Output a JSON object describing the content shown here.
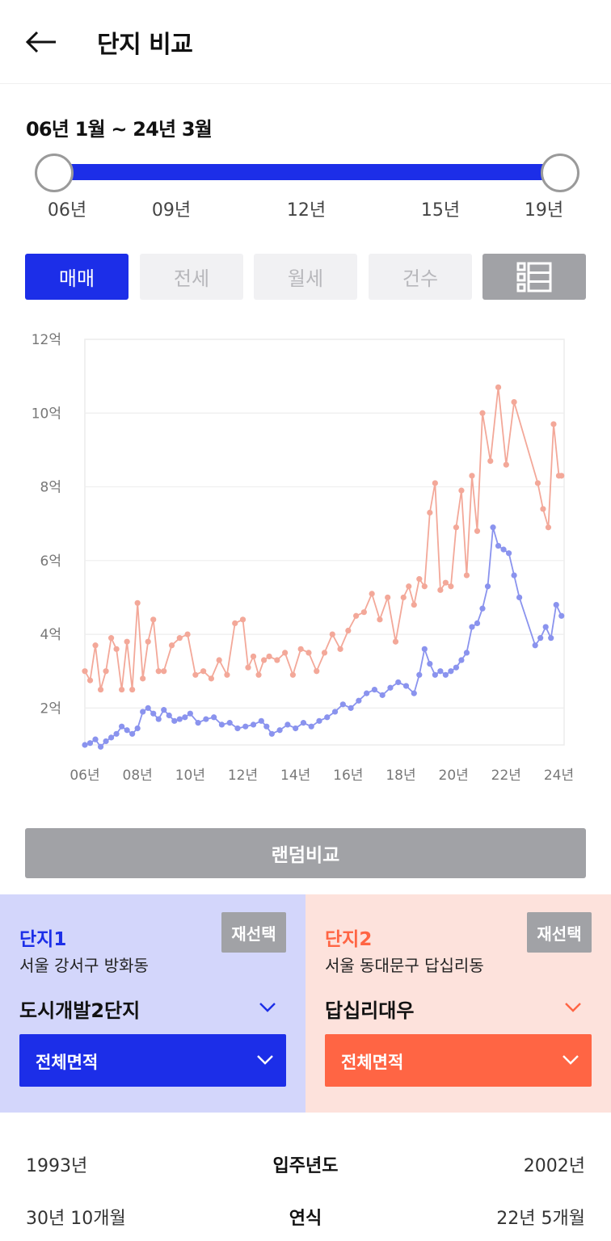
{
  "header": {
    "title": "단지 비교",
    "back_icon": "arrow-left-icon"
  },
  "range": {
    "label": "06년 1월 ~ 24년 3월",
    "ticks": [
      "06년",
      "09년",
      "12년",
      "15년",
      "19년"
    ]
  },
  "tabs": [
    {
      "label": "매매",
      "active": true
    },
    {
      "label": "전세",
      "active": false
    },
    {
      "label": "월세",
      "active": false
    },
    {
      "label": "건수",
      "active": false
    },
    {
      "label": "",
      "icon": "list-icon",
      "active": false
    }
  ],
  "colors": {
    "accent_blue": "#1c2ee8",
    "accent_orange": "#ff6544",
    "series1": "#8a93ee",
    "series2": "#f3a899"
  },
  "chart_data": {
    "type": "line",
    "x_unit": "year",
    "xlim": [
      2006,
      2024.2
    ],
    "ylim": [
      1,
      12
    ],
    "y_ticks": [
      {
        "v": 2,
        "label": "2억"
      },
      {
        "v": 4,
        "label": "4억"
      },
      {
        "v": 6,
        "label": "6억"
      },
      {
        "v": 8,
        "label": "8억"
      },
      {
        "v": 10,
        "label": "10억"
      },
      {
        "v": 12,
        "label": "12억"
      }
    ],
    "x_ticks": [
      {
        "v": 2006,
        "label": "06년"
      },
      {
        "v": 2008,
        "label": "08년"
      },
      {
        "v": 2010,
        "label": "10년"
      },
      {
        "v": 2012,
        "label": "12년"
      },
      {
        "v": 2014,
        "label": "14년"
      },
      {
        "v": 2016,
        "label": "16년"
      },
      {
        "v": 2018,
        "label": "18년"
      },
      {
        "v": 2020,
        "label": "20년"
      },
      {
        "v": 2022,
        "label": "22년"
      },
      {
        "v": 2024,
        "label": "24년"
      }
    ],
    "series": [
      {
        "color": "#8a93ee",
        "x": [
          2006.0,
          2006.2,
          2006.4,
          2006.6,
          2006.8,
          2007.0,
          2007.2,
          2007.4,
          2007.6,
          2007.8,
          2008.0,
          2008.2,
          2008.4,
          2008.6,
          2008.8,
          2009.0,
          2009.2,
          2009.4,
          2009.6,
          2009.8,
          2010.0,
          2010.3,
          2010.6,
          2010.9,
          2011.2,
          2011.5,
          2011.8,
          2012.1,
          2012.4,
          2012.7,
          2012.9,
          2013.1,
          2013.4,
          2013.7,
          2014.0,
          2014.3,
          2014.6,
          2014.9,
          2015.2,
          2015.5,
          2015.8,
          2016.1,
          2016.4,
          2016.7,
          2017.0,
          2017.3,
          2017.6,
          2017.9,
          2018.2,
          2018.5,
          2018.7,
          2018.9,
          2019.1,
          2019.3,
          2019.5,
          2019.7,
          2019.9,
          2020.1,
          2020.3,
          2020.5,
          2020.7,
          2020.9,
          2021.1,
          2021.3,
          2021.5,
          2021.7,
          2021.9,
          2022.1,
          2022.3,
          2022.5,
          2023.1,
          2023.3,
          2023.5,
          2023.7,
          2023.9,
          2024.1
        ],
        "y": [
          1.0,
          1.05,
          1.15,
          0.95,
          1.1,
          1.2,
          1.3,
          1.5,
          1.4,
          1.3,
          1.45,
          1.9,
          2.0,
          1.85,
          1.7,
          1.95,
          1.8,
          1.65,
          1.7,
          1.75,
          1.85,
          1.6,
          1.7,
          1.75,
          1.55,
          1.6,
          1.45,
          1.5,
          1.55,
          1.65,
          1.5,
          1.3,
          1.4,
          1.55,
          1.45,
          1.6,
          1.5,
          1.65,
          1.75,
          1.9,
          2.1,
          2.0,
          2.2,
          2.4,
          2.5,
          2.35,
          2.55,
          2.7,
          2.6,
          2.4,
          2.9,
          3.6,
          3.2,
          2.9,
          3.0,
          2.9,
          3.0,
          3.1,
          3.3,
          3.5,
          4.2,
          4.3,
          4.7,
          5.3,
          6.9,
          6.4,
          6.3,
          6.2,
          5.6,
          5.0,
          3.7,
          3.9,
          4.2,
          3.9,
          4.8,
          4.5
        ]
      },
      {
        "color": "#f3a899",
        "x": [
          2006.0,
          2006.2,
          2006.4,
          2006.6,
          2006.8,
          2007.0,
          2007.2,
          2007.4,
          2007.6,
          2007.8,
          2008.0,
          2008.2,
          2008.4,
          2008.6,
          2008.8,
          2009.0,
          2009.3,
          2009.6,
          2009.9,
          2010.2,
          2010.5,
          2010.8,
          2011.1,
          2011.4,
          2011.7,
          2012.0,
          2012.2,
          2012.4,
          2012.6,
          2012.8,
          2013.0,
          2013.3,
          2013.6,
          2013.9,
          2014.2,
          2014.5,
          2014.8,
          2015.1,
          2015.4,
          2015.7,
          2016.0,
          2016.3,
          2016.6,
          2016.9,
          2017.2,
          2017.5,
          2017.8,
          2018.1,
          2018.3,
          2018.5,
          2018.7,
          2018.9,
          2019.1,
          2019.3,
          2019.5,
          2019.7,
          2019.9,
          2020.1,
          2020.3,
          2020.5,
          2020.7,
          2020.9,
          2021.1,
          2021.4,
          2021.7,
          2022.0,
          2022.3,
          2023.2,
          2023.4,
          2023.6,
          2023.8,
          2024.0,
          2024.1
        ],
        "y": [
          3.0,
          2.75,
          3.7,
          2.5,
          3.0,
          3.9,
          3.6,
          2.5,
          3.8,
          2.5,
          4.85,
          2.8,
          3.8,
          4.4,
          3.0,
          3.0,
          3.7,
          3.9,
          4.0,
          2.9,
          3.0,
          2.8,
          3.3,
          2.9,
          4.3,
          4.4,
          3.1,
          3.4,
          2.9,
          3.3,
          3.4,
          3.3,
          3.5,
          2.9,
          3.6,
          3.5,
          3.0,
          3.5,
          4.0,
          3.6,
          4.1,
          4.5,
          4.6,
          5.1,
          4.4,
          5.0,
          3.8,
          5.0,
          5.3,
          4.8,
          5.5,
          5.3,
          7.3,
          8.1,
          5.2,
          5.4,
          5.3,
          6.9,
          7.9,
          5.6,
          8.3,
          6.8,
          10.0,
          8.7,
          10.7,
          8.6,
          10.3,
          8.1,
          7.4,
          6.9,
          9.7,
          8.3,
          8.3
        ]
      }
    ]
  },
  "random_compare": {
    "label": "랜덤비교"
  },
  "complex1": {
    "label": "단지1",
    "reselect": "재선택",
    "address": "서울 강서구 방화동",
    "name": "도시개발2단지",
    "area": "전체면적"
  },
  "complex2": {
    "label": "단지2",
    "reselect": "재선택",
    "address": "서울 동대문구 답십리동",
    "name": "답십리대우",
    "area": "전체면적"
  },
  "info": [
    {
      "left": "1993년",
      "center": "입주년도",
      "right": "2002년"
    },
    {
      "left": "30년 10개월",
      "center": "연식",
      "right": "22년 5개월"
    }
  ]
}
